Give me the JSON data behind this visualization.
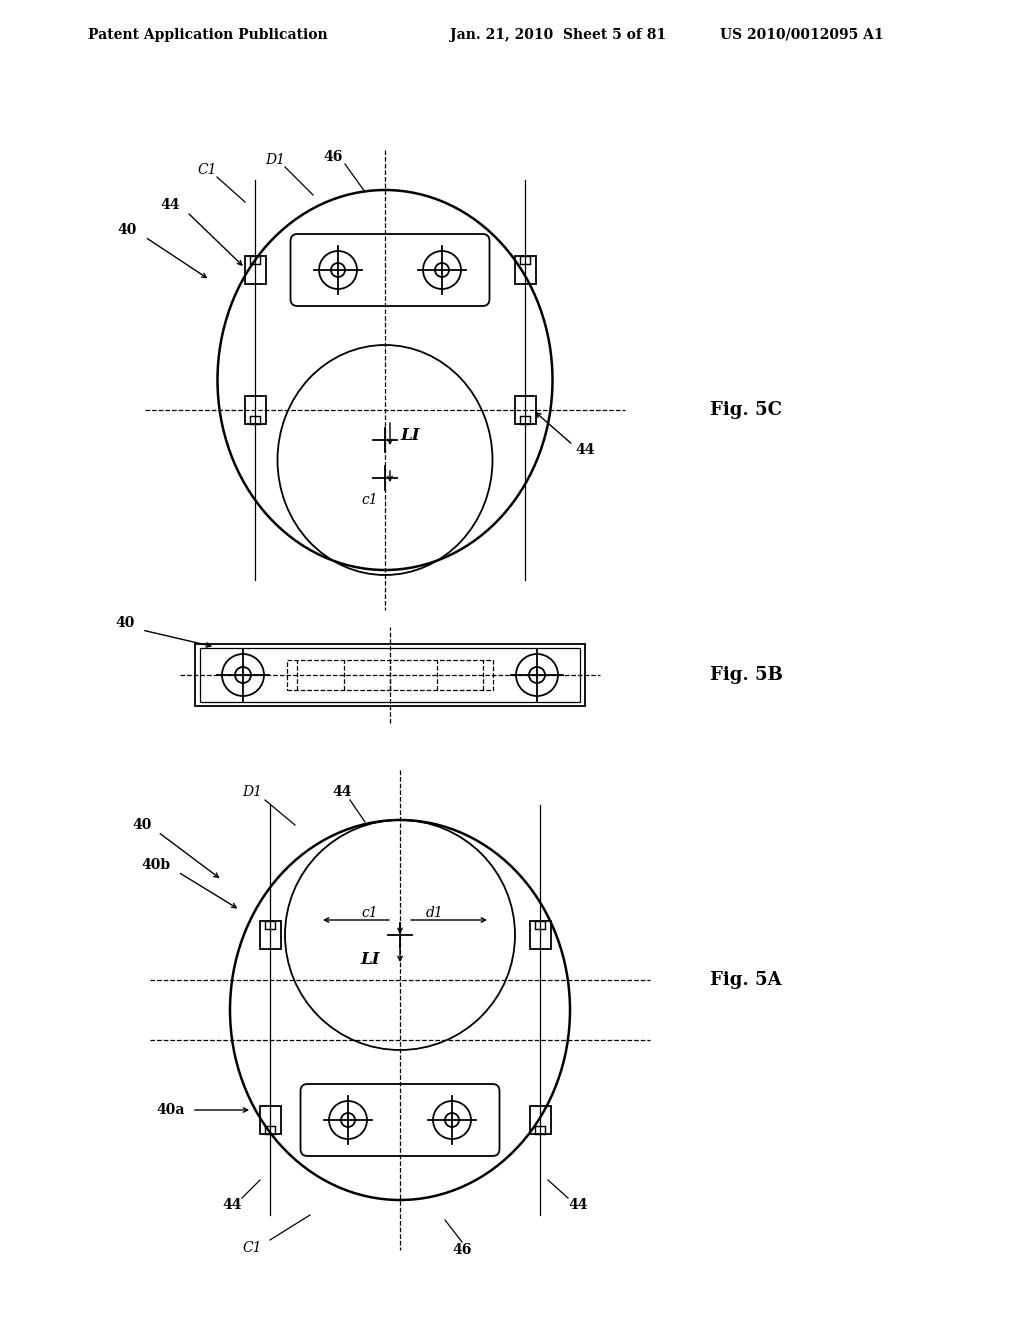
{
  "bg_color": "#ffffff",
  "line_color": "#000000",
  "header_left": "Patent Application Publication",
  "header_mid": "Jan. 21, 2010  Sheet 5 of 81",
  "header_right": "US 2010/0012095 A1",
  "fig5c_label": "Fig. 5C",
  "fig5b_label": "Fig. 5B",
  "fig5a_label": "Fig. 5A",
  "font_size_label": 13,
  "font_size_ref": 10,
  "font_size_header": 10,
  "font_size_inner": 12
}
